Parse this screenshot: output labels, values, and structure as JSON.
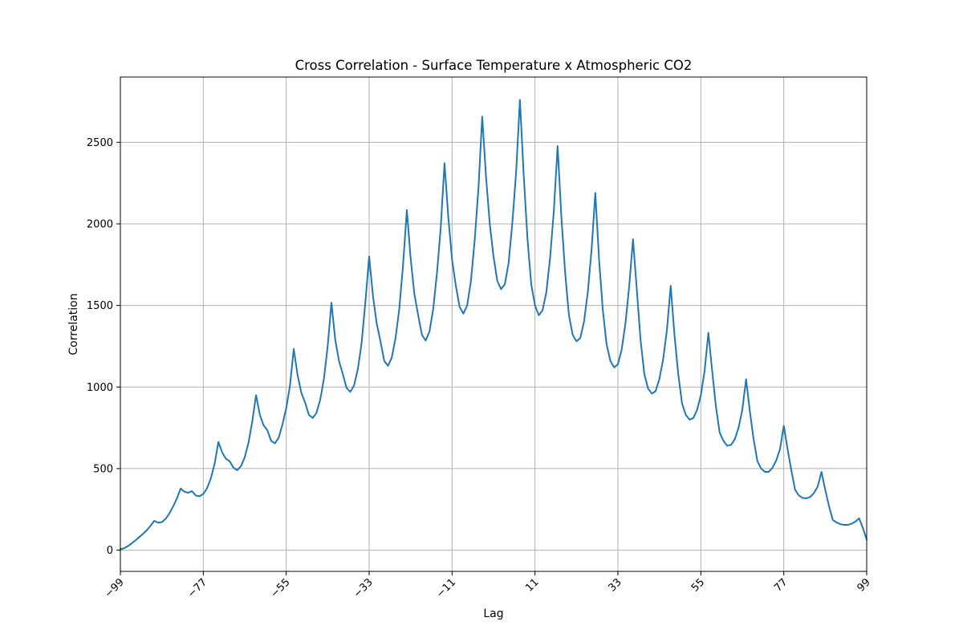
{
  "chart_data": {
    "type": "line",
    "title": "Cross Correlation - Surface Temperature x Atmospheric CO2",
    "xlabel": "Lag",
    "ylabel": "Correlation",
    "xlim": [
      -99,
      99
    ],
    "ylim": [
      -130,
      2900
    ],
    "xticks": [
      -99,
      -77,
      -55,
      -33,
      -11,
      11,
      33,
      55,
      77,
      99
    ],
    "xtick_labels": [
      "−99",
      "−77",
      "−55",
      "−33",
      "−11",
      "11",
      "33",
      "55",
      "77",
      "99"
    ],
    "xtick_rotation": 45,
    "yticks": [
      0,
      500,
      1000,
      1500,
      2000,
      2500
    ],
    "ytick_labels": [
      "0",
      "500",
      "1000",
      "1500",
      "2000",
      "2500"
    ],
    "grid": true,
    "line_color": "#1f77b4",
    "x": [
      -99,
      -98,
      -97,
      -96,
      -95,
      -94,
      -93,
      -92,
      -91,
      -90,
      -89,
      -88,
      -87,
      -86,
      -85,
      -84,
      -83,
      -82,
      -81,
      -80,
      -79,
      -78,
      -77,
      -76,
      -75,
      -74,
      -73,
      -72,
      -71,
      -70,
      -69,
      -68,
      -67,
      -66,
      -65,
      -64,
      -63,
      -62,
      -61,
      -60,
      -59,
      -58,
      -57,
      -56,
      -55,
      -54,
      -53,
      -52,
      -51,
      -50,
      -49,
      -48,
      -47,
      -46,
      -45,
      -44,
      -43,
      -42,
      -41,
      -40,
      -39,
      -38,
      -37,
      -36,
      -35,
      -34,
      -33,
      -32,
      -31,
      -30,
      -29,
      -28,
      -27,
      -26,
      -25,
      -24,
      -23,
      -22,
      -21,
      -20,
      -19,
      -18,
      -17,
      -16,
      -15,
      -14,
      -13,
      -12,
      -11,
      -10,
      -9,
      -8,
      -7,
      -6,
      -5,
      -4,
      -3,
      -2,
      -1,
      0,
      1,
      2,
      3,
      4,
      5,
      6,
      7,
      8,
      9,
      10,
      11,
      12,
      13,
      14,
      15,
      16,
      17,
      18,
      19,
      20,
      21,
      22,
      23,
      24,
      25,
      26,
      27,
      28,
      29,
      30,
      31,
      32,
      33,
      34,
      35,
      36,
      37,
      38,
      39,
      40,
      41,
      42,
      43,
      44,
      45,
      46,
      47,
      48,
      49,
      50,
      51,
      52,
      53,
      54,
      55,
      56,
      57,
      58,
      59,
      60,
      61,
      62,
      63,
      64,
      65,
      66,
      67,
      68,
      69,
      70,
      71,
      72,
      73,
      74,
      75,
      76,
      77,
      78,
      79,
      80,
      81,
      82,
      83,
      84,
      85,
      86,
      87,
      88,
      89,
      90,
      91,
      92,
      93,
      94,
      95,
      96,
      97,
      98,
      99
    ],
    "y": [
      5,
      12,
      25,
      42,
      60,
      80,
      100,
      122,
      150,
      180,
      168,
      172,
      192,
      225,
      268,
      318,
      378,
      358,
      352,
      362,
      335,
      330,
      345,
      380,
      440,
      530,
      663,
      600,
      560,
      545,
      505,
      490,
      515,
      570,
      660,
      790,
      950,
      830,
      765,
      735,
      670,
      655,
      690,
      770,
      870,
      1010,
      1233,
      1075,
      965,
      905,
      830,
      810,
      840,
      920,
      1050,
      1250,
      1517,
      1290,
      1160,
      1080,
      995,
      970,
      1010,
      1110,
      1270,
      1520,
      1800,
      1560,
      1390,
      1280,
      1160,
      1130,
      1180,
      1300,
      1480,
      1750,
      2085,
      1790,
      1570,
      1440,
      1320,
      1285,
      1340,
      1480,
      1700,
      1980,
      2372,
      2040,
      1780,
      1620,
      1490,
      1450,
      1500,
      1650,
      1900,
      2220,
      2658,
      2290,
      2000,
      1800,
      1650,
      1600,
      1630,
      1760,
      2010,
      2320,
      2760,
      2300,
      1910,
      1630,
      1500,
      1440,
      1470,
      1580,
      1790,
      2080,
      2477,
      2040,
      1700,
      1440,
      1320,
      1280,
      1300,
      1400,
      1580,
      1840,
      2190,
      1780,
      1470,
      1260,
      1160,
      1120,
      1140,
      1230,
      1390,
      1620,
      1906,
      1600,
      1290,
      1080,
      990,
      960,
      975,
      1050,
      1170,
      1350,
      1620,
      1320,
      1080,
      900,
      830,
      800,
      810,
      860,
      950,
      1100,
      1333,
      1100,
      880,
      720,
      670,
      640,
      645,
      680,
      750,
      860,
      1048,
      850,
      680,
      545,
      500,
      480,
      480,
      505,
      550,
      620,
      763,
      620,
      490,
      370,
      335,
      320,
      318,
      326,
      350,
      390,
      480,
      370,
      270,
      185,
      170,
      160,
      155,
      155,
      162,
      175,
      195,
      135,
      65
    ]
  }
}
